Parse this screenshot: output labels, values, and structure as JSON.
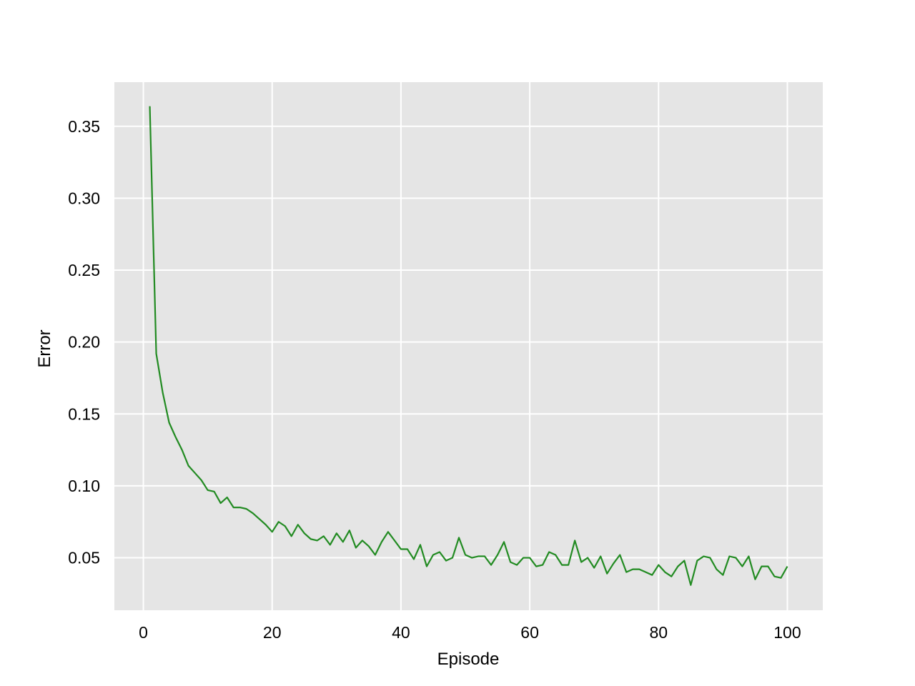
{
  "chart_data": {
    "type": "line",
    "title": "",
    "xlabel": "Episode",
    "ylabel": "Error",
    "xlim": [
      -4.5,
      105.5
    ],
    "ylim": [
      0.0135,
      0.3807
    ],
    "xticks": [
      0,
      20,
      40,
      60,
      80,
      100
    ],
    "xtick_labels": [
      "0",
      "20",
      "40",
      "60",
      "80",
      "100"
    ],
    "yticks": [
      0.05,
      0.1,
      0.15,
      0.2,
      0.25,
      0.3,
      0.35
    ],
    "ytick_labels": [
      "0.05",
      "0.10",
      "0.15",
      "0.20",
      "0.25",
      "0.30",
      "0.35"
    ],
    "grid": true,
    "legend": "none",
    "colors": {
      "background": "#e5e5e5",
      "grid": "#ffffff",
      "line": "#228b22"
    },
    "series": [
      {
        "x": [
          1,
          2,
          3,
          4,
          5,
          6,
          7,
          8,
          9,
          10,
          11,
          12,
          13,
          14,
          15,
          16,
          17,
          18,
          19,
          20,
          21,
          22,
          23,
          24,
          25,
          26,
          27,
          28,
          29,
          30,
          31,
          32,
          33,
          34,
          35,
          36,
          37,
          38,
          39,
          40,
          41,
          42,
          43,
          44,
          45,
          46,
          47,
          48,
          49,
          50,
          51,
          52,
          53,
          54,
          55,
          56,
          57,
          58,
          59,
          60,
          61,
          62,
          63,
          64,
          65,
          66,
          67,
          68,
          69,
          70,
          71,
          72,
          73,
          74,
          75,
          76,
          77,
          78,
          79,
          80,
          81,
          82,
          83,
          84,
          85,
          86,
          87,
          88,
          89,
          90,
          91,
          92,
          93,
          94,
          95,
          96,
          97,
          98,
          99,
          100
        ],
        "values": [
          0.364,
          0.192,
          0.165,
          0.144,
          0.134,
          0.125,
          0.114,
          0.109,
          0.104,
          0.097,
          0.096,
          0.088,
          0.092,
          0.085,
          0.085,
          0.084,
          0.081,
          0.077,
          0.073,
          0.068,
          0.075,
          0.072,
          0.065,
          0.073,
          0.067,
          0.063,
          0.062,
          0.065,
          0.059,
          0.067,
          0.061,
          0.069,
          0.057,
          0.062,
          0.058,
          0.052,
          0.061,
          0.068,
          0.062,
          0.056,
          0.056,
          0.049,
          0.059,
          0.044,
          0.052,
          0.054,
          0.048,
          0.05,
          0.064,
          0.052,
          0.05,
          0.051,
          0.051,
          0.045,
          0.052,
          0.061,
          0.047,
          0.045,
          0.05,
          0.05,
          0.044,
          0.045,
          0.054,
          0.052,
          0.045,
          0.045,
          0.062,
          0.047,
          0.05,
          0.043,
          0.051,
          0.039,
          0.046,
          0.052,
          0.04,
          0.042,
          0.042,
          0.04,
          0.038,
          0.045,
          0.04,
          0.037,
          0.044,
          0.048,
          0.031,
          0.048,
          0.051,
          0.05,
          0.042,
          0.038,
          0.051,
          0.05,
          0.044,
          0.051,
          0.035,
          0.044,
          0.044,
          0.037,
          0.036,
          0.044
        ]
      }
    ]
  }
}
